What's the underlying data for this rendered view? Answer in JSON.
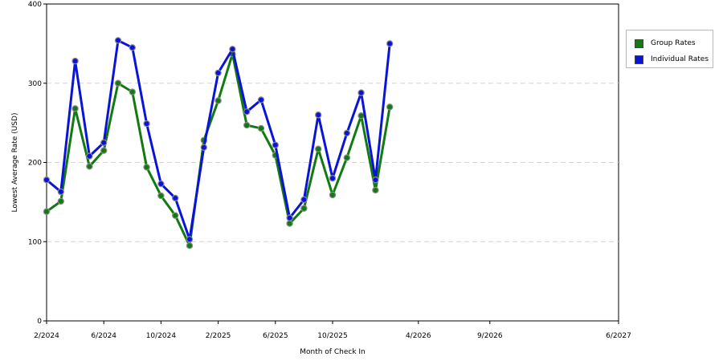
{
  "chart_data": {
    "type": "line",
    "xlabel": "Month of Check In",
    "ylabel": "Lowest Average Rate (USD)",
    "ylim": [
      0,
      400
    ],
    "yticks": [
      0,
      100,
      200,
      300,
      400
    ],
    "grid": true,
    "legend_position": "top-right",
    "x": [
      "2/2024",
      "3/2024",
      "4/2024",
      "5/2024",
      "6/2024",
      "7/2024",
      "8/2024",
      "9/2024",
      "10/2024",
      "11/2024",
      "12/2024",
      "1/2025",
      "2/2025",
      "3/2025",
      "4/2025",
      "5/2025",
      "6/2025",
      "7/2025",
      "8/2025",
      "9/2025",
      "10/2025",
      "11/2025",
      "12/2025",
      "1/2026",
      "2/2026",
      "3/2026",
      "4/2026",
      "5/2026",
      "6/2026",
      "7/2026",
      "8/2026",
      "9/2026",
      "10/2026",
      "11/2026",
      "12/2026",
      "1/2027",
      "2/2027",
      "3/2027",
      "4/2027",
      "5/2027",
      "6/2027"
    ],
    "xtick_labels": [
      "2/2024",
      "6/2024",
      "10/2024",
      "2/2025",
      "6/2025",
      "10/2025",
      "4/2026",
      "9/2026",
      "6/2027"
    ],
    "series": [
      {
        "name": "Group Rates",
        "color": "#117a11",
        "points": [
          {
            "x": "2/2024",
            "y": 138
          },
          {
            "x": "3/2024",
            "y": 151
          },
          {
            "x": "4/2024",
            "y": 268
          },
          {
            "x": "5/2024",
            "y": 195
          },
          {
            "x": "6/2024",
            "y": 215
          },
          {
            "x": "7/2024",
            "y": 300
          },
          {
            "x": "8/2024",
            "y": 289
          },
          {
            "x": "9/2024",
            "y": 194
          },
          {
            "x": "10/2024",
            "y": 158
          },
          {
            "x": "11/2024",
            "y": 133
          },
          {
            "x": "12/2024",
            "y": 95
          },
          {
            "x": "1/2025",
            "y": 228
          },
          {
            "x": "2/2025",
            "y": 278
          },
          {
            "x": "3/2025",
            "y": 337
          },
          {
            "x": "4/2025",
            "y": 247
          },
          {
            "x": "5/2025",
            "y": 243
          },
          {
            "x": "6/2025",
            "y": 209
          },
          {
            "x": "7/2025",
            "y": 123
          },
          {
            "x": "8/2025",
            "y": 142
          },
          {
            "x": "9/2025",
            "y": 217
          },
          {
            "x": "10/2025",
            "y": 159
          },
          {
            "x": "11/2025",
            "y": 206
          },
          {
            "x": "12/2025",
            "y": 259
          },
          {
            "x": "1/2026",
            "y": 165
          },
          {
            "x": "2/2026",
            "y": 270
          }
        ]
      },
      {
        "name": "Individual Rates",
        "color": "#0a14d8",
        "points": [
          {
            "x": "2/2024",
            "y": 178
          },
          {
            "x": "3/2024",
            "y": 163
          },
          {
            "x": "4/2024",
            "y": 328
          },
          {
            "x": "5/2024",
            "y": 208
          },
          {
            "x": "6/2024",
            "y": 225
          },
          {
            "x": "7/2024",
            "y": 354
          },
          {
            "x": "8/2024",
            "y": 345
          },
          {
            "x": "9/2024",
            "y": 249
          },
          {
            "x": "10/2024",
            "y": 173
          },
          {
            "x": "11/2024",
            "y": 155
          },
          {
            "x": "12/2024",
            "y": 103
          },
          {
            "x": "1/2025",
            "y": 219
          },
          {
            "x": "2/2025",
            "y": 313
          },
          {
            "x": "3/2025",
            "y": 343
          },
          {
            "x": "4/2025",
            "y": 264
          },
          {
            "x": "5/2025",
            "y": 279
          },
          {
            "x": "6/2025",
            "y": 222
          },
          {
            "x": "7/2025",
            "y": 130
          },
          {
            "x": "8/2025",
            "y": 153
          },
          {
            "x": "9/2025",
            "y": 260
          },
          {
            "x": "10/2025",
            "y": 180
          },
          {
            "x": "11/2025",
            "y": 237
          },
          {
            "x": "12/2025",
            "y": 288
          },
          {
            "x": "1/2026",
            "y": 178
          },
          {
            "x": "2/2026",
            "y": 350
          }
        ]
      }
    ]
  }
}
